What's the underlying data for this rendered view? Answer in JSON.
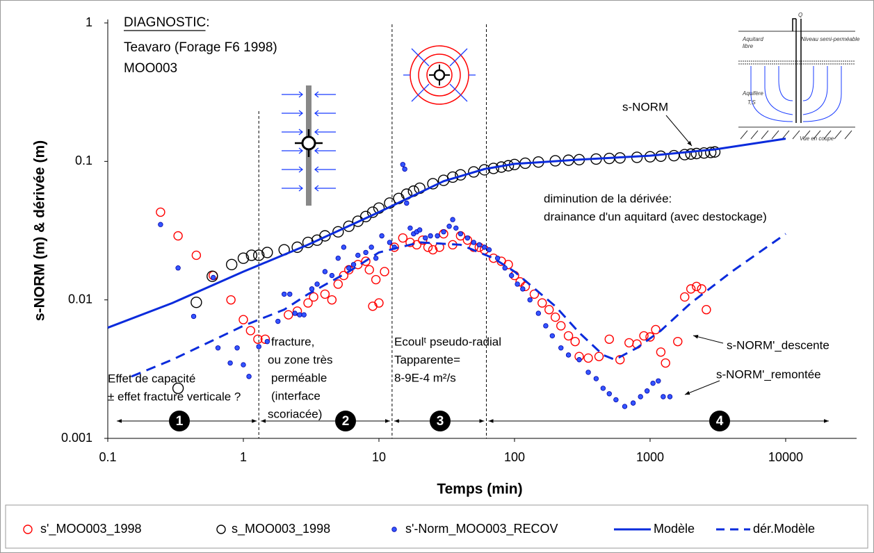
{
  "chart_data": {
    "type": "scatter",
    "log_x": true,
    "log_y": true,
    "title": "DIAGNOSTIC:",
    "subtitle": [
      "Teavaro (Forage F6 1998)",
      "MOO003"
    ],
    "x_label": "Temps (min)",
    "y_label": "s-NORM (m) & dérivée (m)",
    "xlim": [
      0.1,
      30000
    ],
    "xticks": [
      0.1,
      1,
      10,
      100,
      1000,
      10000
    ],
    "ylim": [
      0.001,
      1
    ],
    "yticks": [
      0.001,
      0.01,
      0.1,
      1
    ],
    "period_boundaries": [
      1.3,
      12.5,
      62
    ],
    "periods": [
      "1",
      "2",
      "3",
      "4"
    ],
    "annotations": {
      "snorm": "s-NORM",
      "drainance": [
        "diminution de la dérivée:",
        "drainance d'un aquitard (avec destockage)"
      ],
      "descente": "s-NORM'_descente",
      "remontee": "s-NORM'_remontée",
      "period1": [
        "Effet de capacité",
        "± effet fracture verticale ?"
      ],
      "period2": [
        "fracture,",
        "ou zone très",
        "perméable",
        "(interface",
        "scoriacée)"
      ],
      "period3": [
        "Ecoulᵗ pseudo-radial",
        "Tapparente=",
        "8-9E-4 m²/s"
      ]
    },
    "schematic_labels": [
      "Q",
      "Aquitard",
      "libre",
      "Niveau semi-perméable",
      "Aquifère",
      "T,S",
      "Vue en coupe"
    ],
    "series": [
      {
        "name": "s'_MOO003_1998",
        "color": "#ff0000",
        "marker": "open-circle",
        "x": [
          0.245,
          0.33,
          0.45,
          0.6,
          0.81,
          1.0,
          1.13,
          1.28,
          1.45,
          2.15,
          2.5,
          3,
          3.3,
          4,
          4.5,
          5,
          5.5,
          6,
          7,
          8,
          8.5,
          9,
          9.5,
          10,
          11,
          13,
          15,
          17,
          19,
          21,
          23,
          25,
          28,
          30,
          35,
          40,
          45,
          50,
          55,
          60,
          70,
          80,
          90,
          100,
          110,
          120,
          140,
          160,
          180,
          200,
          220,
          250,
          280,
          300,
          350,
          420,
          500,
          600,
          700,
          800,
          900,
          1000,
          1100,
          1200,
          1300,
          1600,
          1800,
          2000,
          2200,
          2400,
          2600
        ],
        "values": [
          0.043,
          0.029,
          0.021,
          0.015,
          0.01,
          0.0072,
          0.006,
          0.0052,
          0.0052,
          0.0078,
          0.0083,
          0.0095,
          0.0105,
          0.011,
          0.01,
          0.013,
          0.015,
          0.0165,
          0.018,
          0.019,
          0.0165,
          0.009,
          0.014,
          0.0095,
          0.016,
          0.024,
          0.028,
          0.026,
          0.025,
          0.027,
          0.024,
          0.023,
          0.024,
          0.03,
          0.025,
          0.029,
          0.027,
          0.024,
          0.024,
          0.023,
          0.02,
          0.019,
          0.018,
          0.015,
          0.0135,
          0.0125,
          0.011,
          0.0095,
          0.0085,
          0.0075,
          0.0065,
          0.0055,
          0.005,
          0.0039,
          0.0038,
          0.0039,
          0.0052,
          0.0037,
          0.0049,
          0.0048,
          0.0055,
          0.0054,
          0.0061,
          0.0042,
          0.0035,
          0.005,
          0.0105,
          0.012,
          0.0125,
          0.012,
          0.0085
        ]
      },
      {
        "name": "s_MOO003_1998",
        "color": "#000000",
        "marker": "open-circle-large",
        "x": [
          0.33,
          0.45,
          0.59,
          0.82,
          1.0,
          1.15,
          1.3,
          1.5,
          2,
          2.5,
          3,
          3.5,
          4,
          5,
          6,
          7,
          8,
          9,
          10,
          12,
          14,
          16,
          18,
          20,
          25,
          30,
          35,
          40,
          50,
          60,
          70,
          80,
          90,
          100,
          120,
          150,
          200,
          250,
          300,
          400,
          500,
          600,
          800,
          1000,
          1200,
          1500,
          1800,
          2000,
          2200,
          2500,
          2800,
          3000
        ],
        "values": [
          0.0023,
          0.0096,
          0.0148,
          0.018,
          0.02,
          0.021,
          0.021,
          0.022,
          0.023,
          0.024,
          0.026,
          0.027,
          0.029,
          0.031,
          0.034,
          0.037,
          0.04,
          0.043,
          0.046,
          0.05,
          0.054,
          0.058,
          0.061,
          0.064,
          0.069,
          0.073,
          0.077,
          0.08,
          0.084,
          0.087,
          0.089,
          0.091,
          0.093,
          0.095,
          0.097,
          0.099,
          0.101,
          0.102,
          0.103,
          0.104,
          0.105,
          0.106,
          0.107,
          0.108,
          0.109,
          0.11,
          0.112,
          0.113,
          0.114,
          0.115,
          0.116,
          0.117
        ]
      },
      {
        "name": "s'-Norm_MOO003_RECOV",
        "color": "#3355ff",
        "marker": "dot",
        "x": [
          0.245,
          0.33,
          0.43,
          0.6,
          0.65,
          0.8,
          0.9,
          1.0,
          1.1,
          1.3,
          1.5,
          1.8,
          2.0,
          2.2,
          2.4,
          2.6,
          2.8,
          3.2,
          3.5,
          4,
          4.5,
          5,
          5.5,
          6,
          6.5,
          7,
          8,
          8.8,
          9.5,
          10.5,
          12,
          13,
          15,
          15.5,
          16,
          17,
          18,
          19,
          20,
          22,
          24,
          27,
          30,
          33,
          35,
          37,
          40,
          45,
          50,
          55,
          60,
          65,
          75,
          85,
          95,
          105,
          115,
          130,
          150,
          170,
          190,
          220,
          250,
          300,
          350,
          400,
          450,
          500,
          560,
          650,
          750,
          850,
          950,
          1050,
          1150,
          1250,
          1400
        ],
        "values": [
          0.035,
          0.017,
          0.0076,
          0.0145,
          0.0045,
          0.0035,
          0.0045,
          0.0034,
          0.0028,
          0.0046,
          0.005,
          0.007,
          0.011,
          0.011,
          0.008,
          0.0078,
          0.0078,
          0.012,
          0.013,
          0.016,
          0.015,
          0.02,
          0.024,
          0.017,
          0.018,
          0.021,
          0.022,
          0.024,
          0.02,
          0.029,
          0.026,
          0.024,
          0.095,
          0.088,
          0.05,
          0.033,
          0.03,
          0.031,
          0.032,
          0.028,
          0.029,
          0.029,
          0.031,
          0.034,
          0.038,
          0.033,
          0.03,
          0.028,
          0.026,
          0.025,
          0.024,
          0.023,
          0.02,
          0.017,
          0.015,
          0.013,
          0.012,
          0.01,
          0.008,
          0.0065,
          0.0055,
          0.0045,
          0.004,
          0.0037,
          0.003,
          0.0027,
          0.0023,
          0.0021,
          0.0019,
          0.0017,
          0.0018,
          0.002,
          0.0022,
          0.0025,
          0.0026,
          0.002,
          0.002
        ]
      },
      {
        "name": "Modèle",
        "color": "#0a2bdc",
        "marker": "line",
        "x": [
          0.1,
          0.3,
          1,
          3,
          10,
          30,
          60,
          100,
          300,
          1000,
          3000,
          10000
        ],
        "values": [
          0.0063,
          0.0095,
          0.016,
          0.025,
          0.043,
          0.072,
          0.088,
          0.096,
          0.103,
          0.11,
          0.122,
          0.146
        ]
      },
      {
        "name": "dér.Modèle",
        "color": "#0a2bdc",
        "marker": "dashed-line",
        "x": [
          0.15,
          0.3,
          1,
          2,
          3,
          6,
          10,
          20,
          40,
          70,
          100,
          200,
          300,
          450,
          550,
          800,
          1200,
          2000,
          4000,
          10000
        ],
        "values": [
          0.0028,
          0.0037,
          0.0065,
          0.0085,
          0.011,
          0.016,
          0.022,
          0.026,
          0.025,
          0.02,
          0.016,
          0.009,
          0.0058,
          0.004,
          0.0037,
          0.0045,
          0.006,
          0.0095,
          0.016,
          0.03
        ]
      }
    ]
  }
}
